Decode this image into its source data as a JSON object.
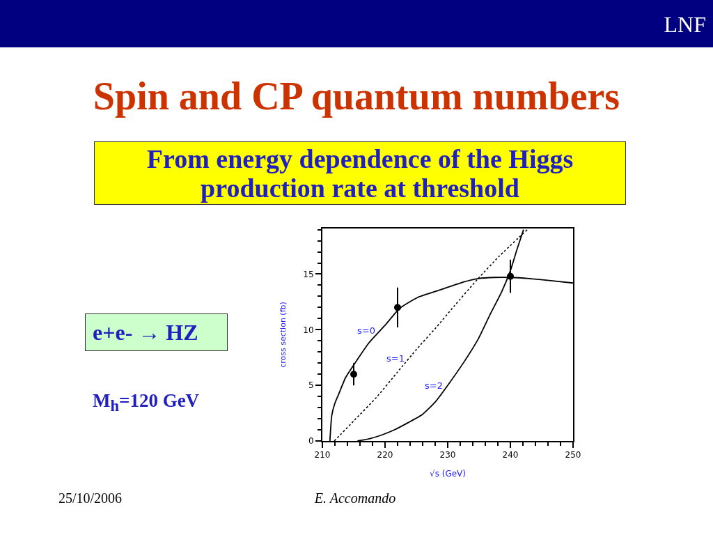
{
  "chart_data": {
    "type": "line",
    "title": "Spin and CP quantum numbers",
    "subtitle": "From energy dependence of the Higgs production rate at threshold",
    "xlabel": "√s (GeV)",
    "ylabel": "cross section (fb)",
    "annotations": [
      "LNF",
      "e+e- → HZ",
      "M$_{h}$=120 GeV",
      "25/10/2006",
      "E. Accomando"
    ],
    "series": [
      {
        "name": "s=0",
        "type": "line",
        "color": "#000000",
        "line_style": "solid",
        "x": [
          211.2,
          211.5,
          212,
          212.6,
          213.7,
          215.2,
          217.4,
          220,
          222.3,
          225.2,
          228.9,
          232.6,
          234.9,
          237.5,
          240,
          243,
          246.7,
          250
        ],
        "values": [
          0,
          2.3,
          3.4,
          4.2,
          5.7,
          7,
          8.8,
          10.4,
          11.9,
          12.9,
          13.6,
          14.3,
          14.6,
          14.7,
          14.7,
          14.6,
          14.4,
          14.2
        ]
      },
      {
        "name": "s=1",
        "type": "line",
        "color": "#000000",
        "line_style": "dotted",
        "x": [
          211.9,
          215,
          218.6,
          222,
          225.2,
          228,
          231,
          234.7,
          238.2,
          242.7
        ],
        "values": [
          0,
          1.8,
          3.9,
          6.2,
          8.35,
          10.1,
          12.1,
          14.5,
          16.6,
          19
        ]
      },
      {
        "name": "s=2",
        "type": "line",
        "color": "#000000",
        "line_style": "solid",
        "x": [
          215.6,
          217.5,
          219.3,
          221.5,
          223.7,
          226,
          228,
          230,
          232.6,
          234.9,
          236.7,
          238.6,
          240,
          241.1,
          242.1
        ],
        "values": [
          0,
          0.2,
          0.5,
          1,
          1.65,
          2.4,
          3.5,
          5,
          7.1,
          9.2,
          11.3,
          13.4,
          15.3,
          17.3,
          19
        ]
      },
      {
        "type": "scatter",
        "color": "#000000",
        "marker": "circle",
        "x": [
          215,
          222,
          240
        ],
        "values": [
          6,
          12,
          14.8
        ],
        "errors": [
          1,
          1.8,
          1.5
        ]
      }
    ],
    "xlim": [
      210,
      250
    ],
    "ylim": [
      0,
      19.1
    ],
    "xticks": [
      210,
      {
        "value": 212,
        "label": null
      },
      {
        "value": 214,
        "label": null
      },
      {
        "value": 216,
        "label": null
      },
      {
        "value": 218,
        "label": null
      },
      220,
      {
        "value": 222,
        "label": null
      },
      {
        "value": 224,
        "label": null
      },
      {
        "value": 226,
        "label": null
      },
      {
        "value": 228,
        "label": null
      },
      230,
      {
        "value": 232,
        "label": null
      },
      {
        "value": 234,
        "label": null
      },
      {
        "value": 236,
        "label": null
      },
      {
        "value": 238,
        "label": null
      },
      240,
      {
        "value": 242,
        "label": null
      },
      {
        "value": 244,
        "label": null
      },
      {
        "value": 246,
        "label": null
      },
      {
        "value": 248,
        "label": null
      },
      250
    ],
    "yticks": [
      0,
      {
        "value": 1,
        "label": null
      },
      {
        "value": 2,
        "label": null
      },
      {
        "value": 3,
        "label": null
      },
      {
        "value": 4,
        "label": null
      },
      5,
      {
        "value": 6,
        "label": null
      },
      {
        "value": 7,
        "label": null
      },
      {
        "value": 8,
        "label": null
      },
      {
        "value": 9,
        "label": null
      },
      10,
      {
        "value": 11,
        "label": null
      },
      {
        "value": 12,
        "label": null
      },
      {
        "value": 13,
        "label": null
      },
      {
        "value": 14,
        "label": null
      },
      15,
      {
        "value": 16,
        "label": null
      },
      {
        "value": 17,
        "label": null
      },
      {
        "value": 18,
        "label": null
      },
      {
        "value": 19,
        "label": null
      }
    ]
  }
}
